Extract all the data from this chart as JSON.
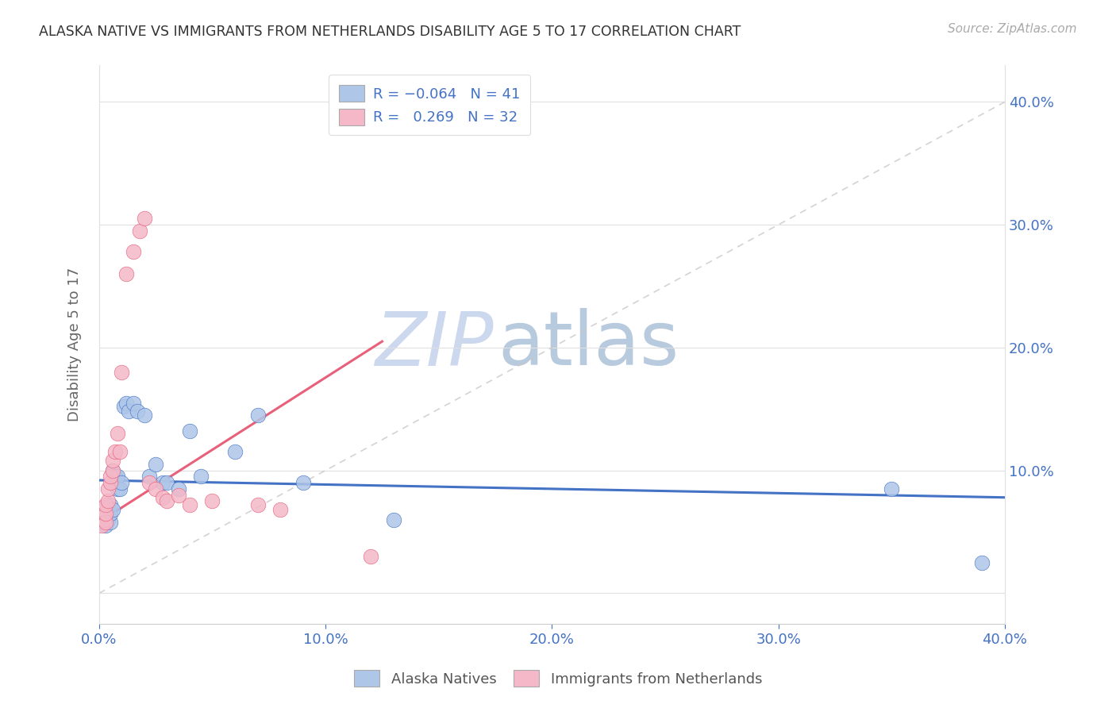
{
  "title": "ALASKA NATIVE VS IMMIGRANTS FROM NETHERLANDS DISABILITY AGE 5 TO 17 CORRELATION CHART",
  "source": "Source: ZipAtlas.com",
  "ylabel": "Disability Age 5 to 17",
  "color_blue": "#aec6e8",
  "color_pink": "#f4b8c8",
  "color_blue_line": "#4472c4",
  "color_pink_line": "#e8607a",
  "color_diag_line": "#c8c8c8",
  "watermark_zip_color": "#c8d8ee",
  "watermark_atlas_color": "#b8c8de",
  "xlim": [
    0.0,
    0.4
  ],
  "ylim": [
    -0.025,
    0.43
  ],
  "alaska_x": [
    0.001,
    0.001,
    0.002,
    0.002,
    0.002,
    0.003,
    0.003,
    0.003,
    0.004,
    0.004,
    0.004,
    0.005,
    0.005,
    0.005,
    0.006,
    0.006,
    0.007,
    0.007,
    0.008,
    0.008,
    0.009,
    0.01,
    0.011,
    0.012,
    0.013,
    0.015,
    0.017,
    0.02,
    0.022,
    0.025,
    0.028,
    0.03,
    0.035,
    0.04,
    0.045,
    0.06,
    0.07,
    0.09,
    0.13,
    0.35,
    0.39
  ],
  "alaska_y": [
    0.06,
    0.065,
    0.058,
    0.065,
    0.07,
    0.055,
    0.06,
    0.068,
    0.06,
    0.065,
    0.07,
    0.058,
    0.065,
    0.072,
    0.068,
    0.1,
    0.09,
    0.095,
    0.085,
    0.095,
    0.085,
    0.09,
    0.152,
    0.155,
    0.148,
    0.155,
    0.148,
    0.145,
    0.095,
    0.105,
    0.09,
    0.09,
    0.085,
    0.132,
    0.095,
    0.115,
    0.145,
    0.09,
    0.06,
    0.085,
    0.025
  ],
  "netherlands_x": [
    0.001,
    0.001,
    0.002,
    0.002,
    0.002,
    0.003,
    0.003,
    0.003,
    0.004,
    0.004,
    0.005,
    0.005,
    0.006,
    0.006,
    0.007,
    0.008,
    0.009,
    0.01,
    0.012,
    0.015,
    0.018,
    0.02,
    0.022,
    0.025,
    0.028,
    0.03,
    0.035,
    0.04,
    0.05,
    0.07,
    0.08,
    0.12
  ],
  "netherlands_y": [
    0.055,
    0.062,
    0.06,
    0.065,
    0.068,
    0.058,
    0.065,
    0.072,
    0.075,
    0.085,
    0.09,
    0.095,
    0.1,
    0.108,
    0.115,
    0.13,
    0.115,
    0.18,
    0.26,
    0.278,
    0.295,
    0.305,
    0.09,
    0.085,
    0.078,
    0.075,
    0.08,
    0.072,
    0.075,
    0.072,
    0.068,
    0.03
  ],
  "blue_trend_x": [
    0.0,
    0.4
  ],
  "blue_trend_y": [
    0.092,
    0.078
  ],
  "pink_trend_x": [
    0.0,
    0.125
  ],
  "pink_trend_y": [
    0.058,
    0.205
  ]
}
